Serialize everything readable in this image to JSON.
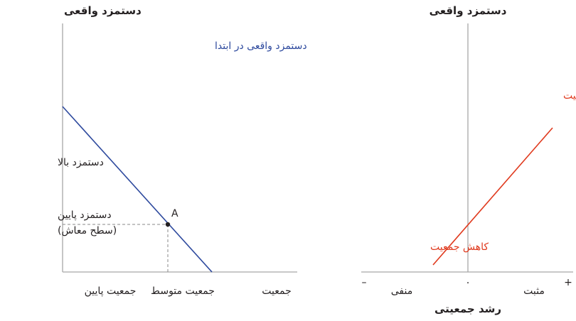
{
  "colors": {
    "axis": "#a8a8a8",
    "initial_wage_line": "#2e4a9e",
    "growth_line": "#e03a1e",
    "text": "#231f20"
  },
  "left_panel": {
    "y_axis_title": "دستمزد واقعی",
    "curve_label": "دستمزد واقعی در ابتدا",
    "y_label_high": "دستمزد بالا",
    "y_label_low_line1": "دستمزد پایین",
    "y_label_low_line2": "(سطح معاش)",
    "point_label": "A",
    "x_label_low": "جمعیت پایین",
    "x_label_mid": "جمعیت متوسط",
    "x_label_axis": "جمعیت"
  },
  "right_panel": {
    "y_axis_title": "دستمزد واقعی",
    "label_increase": "افزایش جمعیت",
    "label_decrease": "کاهش جمعیت",
    "x_label_negative": "منفی",
    "x_label_zero": "۰",
    "x_label_positive": "مثبت",
    "sign_minus": "–",
    "sign_plus": "+",
    "x_axis_title": "رشد جمعیتی"
  }
}
